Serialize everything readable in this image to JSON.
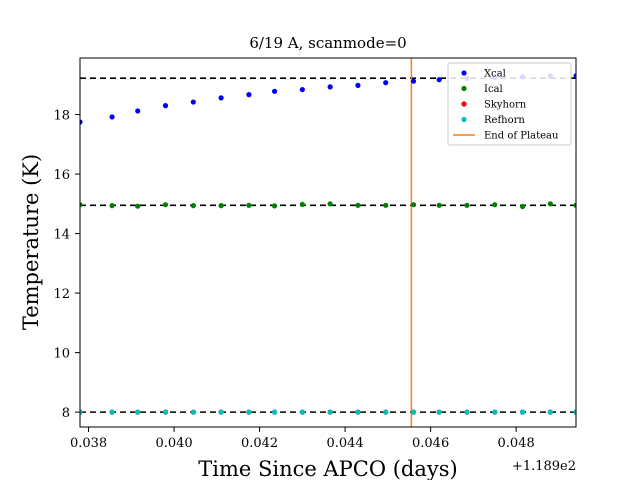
{
  "chart_data": {
    "type": "scatter",
    "title": "6/19 A, scanmode=0",
    "xlabel": "Time Since APCO (days)",
    "ylabel": "Temperature (K)",
    "offset_label": "+1.189e2",
    "xlim": [
      0.0378,
      0.0494
    ],
    "ylim": [
      7.5,
      19.9
    ],
    "x_ticks": [
      0.038,
      0.04,
      0.042,
      0.044,
      0.046,
      0.048
    ],
    "x_tick_labels": [
      "0.038",
      "0.040",
      "0.042",
      "0.044",
      "0.046",
      "0.048"
    ],
    "y_ticks": [
      8,
      10,
      12,
      14,
      16,
      18
    ],
    "y_tick_labels": [
      "8",
      "10",
      "12",
      "14",
      "16",
      "18"
    ],
    "x": [
      0.0378,
      0.03855,
      0.03915,
      0.0398,
      0.04045,
      0.0411,
      0.04175,
      0.04235,
      0.043,
      0.04365,
      0.0443,
      0.04495,
      0.0456,
      0.0462,
      0.04685,
      0.0475,
      0.04815,
      0.0488,
      0.0494
    ],
    "series": [
      {
        "name": "Xcal",
        "color": "#0000ff",
        "values": [
          17.75,
          17.92,
          18.12,
          18.3,
          18.42,
          18.56,
          18.67,
          18.78,
          18.84,
          18.93,
          18.98,
          19.07,
          19.12,
          19.17,
          19.22,
          19.25,
          19.27,
          19.29,
          19.3
        ]
      },
      {
        "name": "Ical",
        "color": "#008000",
        "values": [
          14.97,
          14.94,
          14.92,
          14.97,
          14.94,
          14.94,
          14.95,
          14.93,
          14.98,
          15.0,
          14.95,
          14.95,
          14.97,
          14.95,
          14.95,
          14.97,
          14.91,
          15.0,
          14.95
        ]
      },
      {
        "name": "Skyhorn",
        "color": "#ff0000",
        "values": [
          8.0,
          8.0,
          8.0,
          8.0,
          8.0,
          8.0,
          8.0,
          8.0,
          8.0,
          8.0,
          8.0,
          8.0,
          8.0,
          8.0,
          8.0,
          8.0,
          8.0,
          8.0,
          8.0
        ]
      },
      {
        "name": "Refhorn",
        "color": "#00bfbf",
        "values": [
          8.0,
          8.0,
          8.0,
          8.0,
          8.0,
          8.0,
          8.0,
          8.0,
          8.0,
          8.0,
          8.0,
          8.0,
          8.0,
          8.0,
          8.0,
          8.0,
          8.0,
          8.0,
          8.0
        ]
      }
    ],
    "hlines": [
      19.22,
      14.95,
      8.0
    ],
    "vline": {
      "name": "End of Plateau",
      "x": 0.04555,
      "color": "#ff7f0e"
    },
    "grid": false,
    "legend_position": "upper right"
  }
}
